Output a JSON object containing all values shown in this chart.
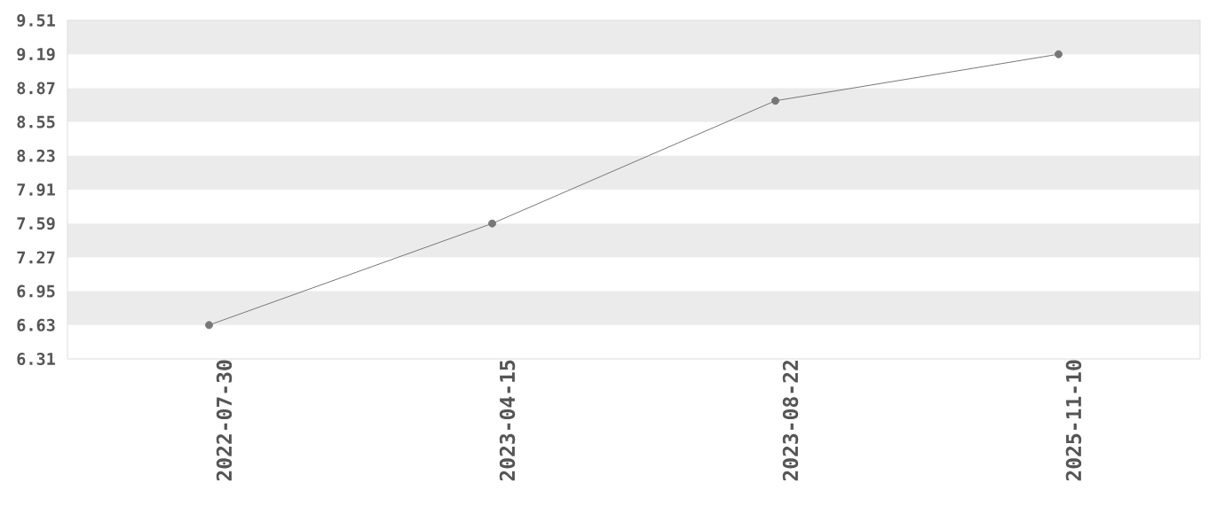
{
  "chart_data": {
    "type": "line",
    "categories": [
      "2022-07-30",
      "2023-04-15",
      "2023-08-22",
      "2025-11-10"
    ],
    "values": [
      6.63,
      7.59,
      8.75,
      9.19
    ],
    "color": "#777777",
    "marker": "circle",
    "line_style": "solid",
    "ylim": [
      6.31,
      9.51
    ],
    "yticks": [
      6.31,
      6.63,
      6.95,
      7.27,
      7.59,
      7.91,
      8.23,
      8.55,
      8.87,
      9.19,
      9.51
    ],
    "bands": [
      {
        "axis": "y",
        "from": 6.63,
        "to": 6.95,
        "color": "#ebebeb"
      },
      {
        "axis": "y",
        "from": 7.27,
        "to": 7.59,
        "color": "#ebebeb"
      },
      {
        "axis": "y",
        "from": 7.91,
        "to": 8.23,
        "color": "#ebebeb"
      },
      {
        "axis": "y",
        "from": 8.55,
        "to": 8.87,
        "color": "#ebebeb"
      },
      {
        "axis": "y",
        "from": 9.19,
        "to": 9.51,
        "color": "#ebebeb"
      }
    ]
  }
}
